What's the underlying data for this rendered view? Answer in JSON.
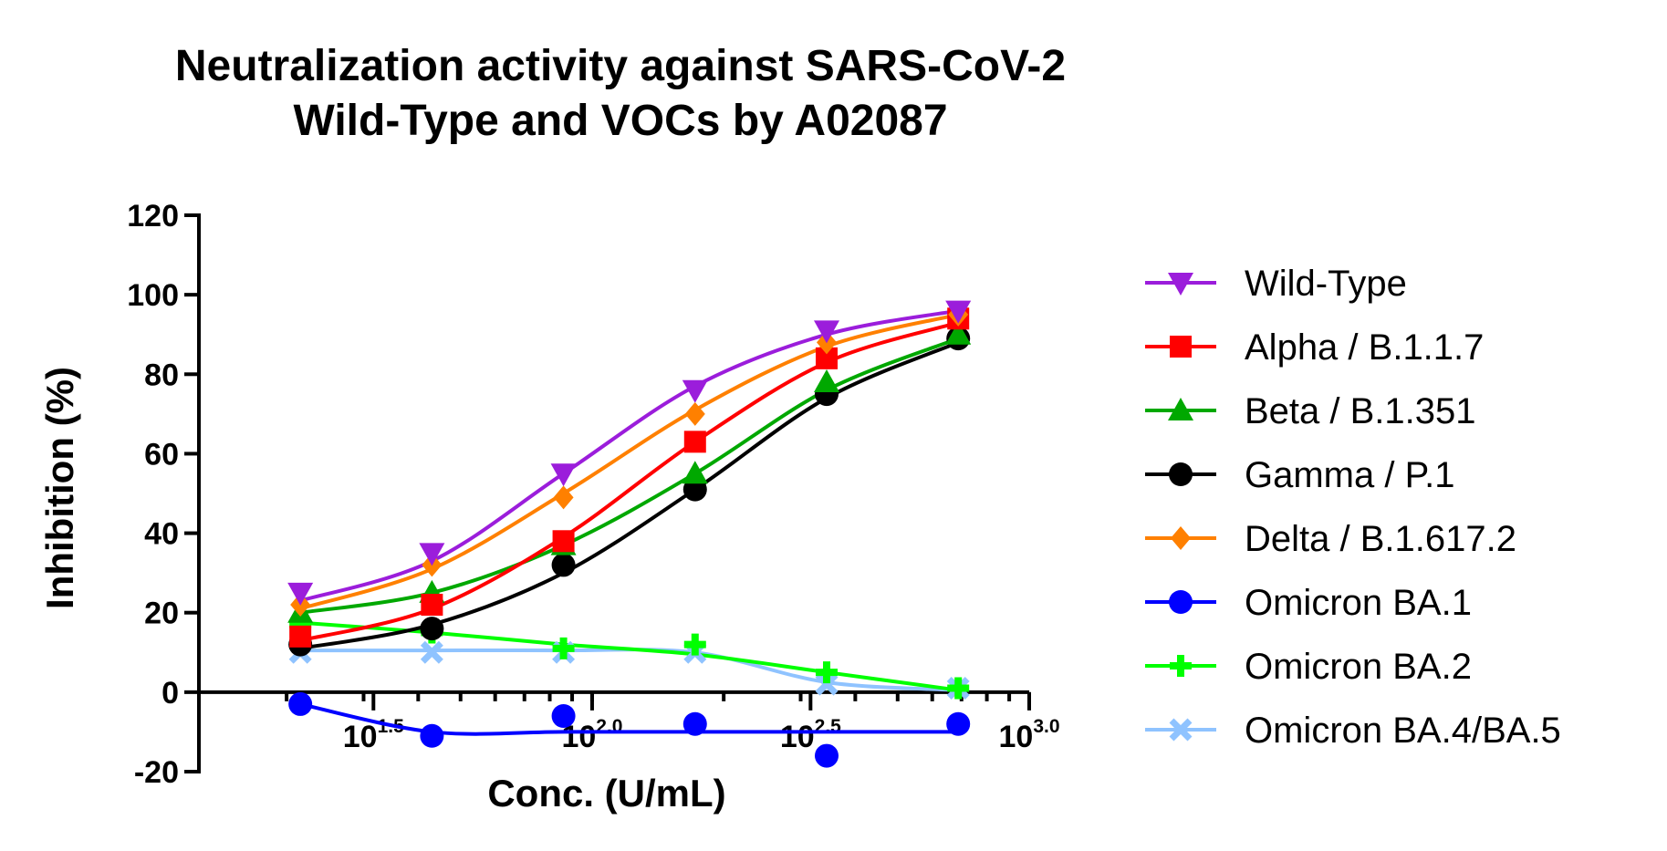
{
  "chart_data": {
    "type": "line",
    "title": [
      "Neutralization activity against SARS-CoV-2",
      "Wild-Type and VOCs by A02087"
    ],
    "xlabel": "Conc. (U/mL)",
    "ylabel": "Inhibition (%)",
    "x_scale": "log10",
    "xlim": [
      12.6,
      1000
    ],
    "ylim": [
      -20,
      120
    ],
    "y_ticks": [
      -20,
      0,
      20,
      40,
      60,
      80,
      100,
      120
    ],
    "y_tick_labels": [
      "-20",
      "0",
      "20",
      "40",
      "60",
      "80",
      "100",
      "120"
    ],
    "x_ticks": [
      31.6,
      100,
      316,
      1000
    ],
    "x_tick_labels": [
      {
        "base": "10",
        "exp": "1.5"
      },
      {
        "base": "10",
        "exp": "2.0"
      },
      {
        "base": "10",
        "exp": "2.5"
      },
      {
        "base": "10",
        "exp": "3.0"
      }
    ],
    "x": [
      21.5,
      43.0,
      86.0,
      172.0,
      344.0,
      688.0
    ],
    "legend_position": "right",
    "grid": false,
    "series": [
      {
        "name": "Wild-Type",
        "color": "#9b1ddb",
        "marker": "triangle-down",
        "values": [
          25,
          35,
          55,
          76,
          91,
          96
        ],
        "curve": [
          23,
          33,
          55,
          77,
          90,
          96
        ]
      },
      {
        "name": "Alpha / B.1.1.7",
        "color": "#ff0000",
        "marker": "square",
        "values": [
          14,
          22,
          38,
          63,
          84,
          94
        ],
        "curve": [
          13,
          21,
          39,
          63,
          83,
          93
        ]
      },
      {
        "name": "Beta / B.1.351",
        "color": "#00a800",
        "marker": "triangle-up",
        "values": [
          20,
          25,
          37,
          55,
          78,
          90
        ],
        "curve": [
          20,
          25,
          37,
          55,
          76,
          89
        ]
      },
      {
        "name": "Gamma / P.1",
        "color": "#000000",
        "marker": "circle",
        "values": [
          12,
          16,
          32,
          51,
          75,
          89
        ],
        "curve": [
          11,
          17,
          30,
          51,
          74,
          88
        ]
      },
      {
        "name": "Delta / B.1.617.2",
        "color": "#ff8000",
        "marker": "diamond",
        "values": [
          22,
          32,
          49,
          70,
          88,
          95
        ],
        "curve": [
          21,
          31,
          50,
          71,
          87,
          95
        ]
      },
      {
        "name": "Omicron BA.1",
        "color": "#0000ff",
        "marker": "circle",
        "values": [
          -3,
          -11,
          -6,
          -8,
          -16,
          -8
        ],
        "curve": [
          -3,
          -10,
          -10,
          -10,
          -10,
          -10
        ]
      },
      {
        "name": "Omicron BA.2",
        "color": "#00ff00",
        "marker": "plus",
        "values": [
          17,
          15,
          11,
          12,
          5,
          1
        ],
        "curve": [
          17.5,
          15,
          12,
          9.5,
          5,
          0.5
        ]
      },
      {
        "name": "Omicron BA.4/BA.5",
        "color": "#8fc3ff",
        "marker": "cross",
        "values": [
          10,
          10,
          10,
          10,
          2,
          1
        ],
        "curve": [
          10.5,
          10.5,
          10.5,
          10,
          2.5,
          0.5
        ]
      }
    ]
  }
}
